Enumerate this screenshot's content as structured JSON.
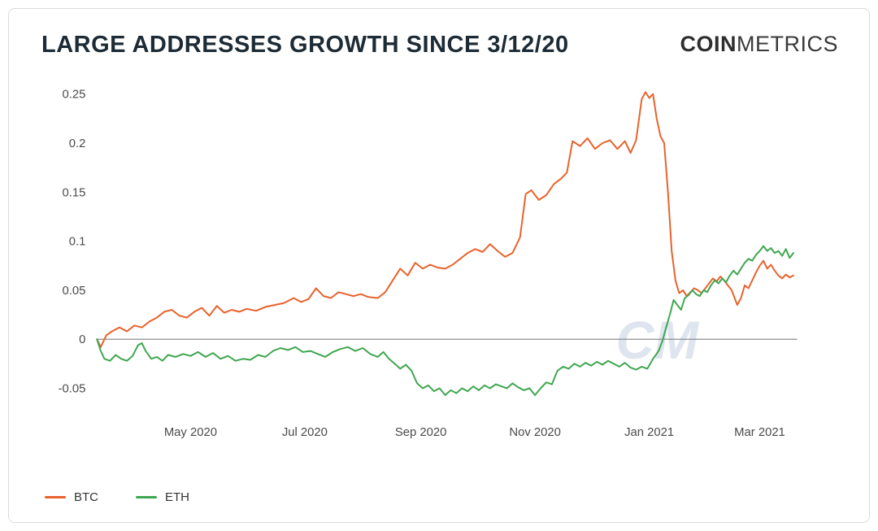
{
  "header": {
    "title": "LARGE ADDRESSES GROWTH SINCE 3/12/20",
    "brand": {
      "coin": "COIN",
      "metrics": "METRICS"
    }
  },
  "legend": {
    "items": [
      {
        "label": "BTC",
        "color": "#E8622C"
      },
      {
        "label": "ETH",
        "color": "#3FA650"
      }
    ]
  },
  "chart_data": {
    "type": "line",
    "title": "LARGE ADDRESSES GROWTH SINCE 3/12/20",
    "xlabel": "",
    "ylabel": "",
    "x_unit": "days since 2020-03-12",
    "xlim": [
      0,
      374
    ],
    "ylim": [
      -0.072,
      0.268
    ],
    "grid": false,
    "legend_position": "bottom-left",
    "zero_line": true,
    "zero_line_color": "#808080",
    "tick_color": "#4a4a4a",
    "watermark": "CM",
    "watermark_color": "#dfe5ee",
    "xticks": [
      {
        "v": 50,
        "label": "May 2020"
      },
      {
        "v": 111,
        "label": "Jul 2020"
      },
      {
        "v": 173,
        "label": "Sep 2020"
      },
      {
        "v": 234,
        "label": "Nov 2020"
      },
      {
        "v": 295,
        "label": "Jan 2021"
      },
      {
        "v": 354,
        "label": "Mar 2021"
      }
    ],
    "yticks": [
      {
        "v": 0.25,
        "label": "0.25"
      },
      {
        "v": 0.2,
        "label": "0.2"
      },
      {
        "v": 0.15,
        "label": "0.15"
      },
      {
        "v": 0.1,
        "label": "0.1"
      },
      {
        "v": 0.05,
        "label": "0.05"
      },
      {
        "v": 0,
        "label": "0"
      },
      {
        "v": -0.05,
        "label": "-0.05"
      }
    ],
    "series": [
      {
        "name": "BTC",
        "color": "#E8622C",
        "points": [
          [
            0,
            0
          ],
          [
            2,
            -0.008
          ],
          [
            5,
            0.004
          ],
          [
            8,
            0.008
          ],
          [
            12,
            0.012
          ],
          [
            16,
            0.008
          ],
          [
            20,
            0.014
          ],
          [
            24,
            0.012
          ],
          [
            28,
            0.018
          ],
          [
            32,
            0.022
          ],
          [
            36,
            0.028
          ],
          [
            40,
            0.03
          ],
          [
            44,
            0.024
          ],
          [
            48,
            0.022
          ],
          [
            52,
            0.028
          ],
          [
            56,
            0.032
          ],
          [
            60,
            0.024
          ],
          [
            64,
            0.034
          ],
          [
            68,
            0.027
          ],
          [
            72,
            0.03
          ],
          [
            76,
            0.028
          ],
          [
            80,
            0.031
          ],
          [
            85,
            0.029
          ],
          [
            90,
            0.033
          ],
          [
            95,
            0.035
          ],
          [
            100,
            0.037
          ],
          [
            105,
            0.042
          ],
          [
            109,
            0.038
          ],
          [
            113,
            0.041
          ],
          [
            117,
            0.052
          ],
          [
            121,
            0.044
          ],
          [
            125,
            0.042
          ],
          [
            129,
            0.048
          ],
          [
            133,
            0.046
          ],
          [
            137,
            0.044
          ],
          [
            141,
            0.046
          ],
          [
            145,
            0.043
          ],
          [
            150,
            0.042
          ],
          [
            154,
            0.048
          ],
          [
            158,
            0.06
          ],
          [
            162,
            0.072
          ],
          [
            166,
            0.065
          ],
          [
            170,
            0.078
          ],
          [
            174,
            0.072
          ],
          [
            178,
            0.076
          ],
          [
            182,
            0.073
          ],
          [
            186,
            0.072
          ],
          [
            190,
            0.076
          ],
          [
            194,
            0.082
          ],
          [
            198,
            0.088
          ],
          [
            202,
            0.092
          ],
          [
            206,
            0.089
          ],
          [
            210,
            0.097
          ],
          [
            214,
            0.09
          ],
          [
            218,
            0.084
          ],
          [
            222,
            0.088
          ],
          [
            226,
            0.104
          ],
          [
            229,
            0.148
          ],
          [
            232,
            0.152
          ],
          [
            236,
            0.142
          ],
          [
            240,
            0.147
          ],
          [
            244,
            0.158
          ],
          [
            248,
            0.164
          ],
          [
            251,
            0.17
          ],
          [
            254,
            0.202
          ],
          [
            258,
            0.197
          ],
          [
            262,
            0.205
          ],
          [
            266,
            0.194
          ],
          [
            270,
            0.2
          ],
          [
            274,
            0.203
          ],
          [
            278,
            0.194
          ],
          [
            282,
            0.202
          ],
          [
            285,
            0.19
          ],
          [
            288,
            0.203
          ],
          [
            291,
            0.245
          ],
          [
            293,
            0.252
          ],
          [
            295,
            0.246
          ],
          [
            297,
            0.25
          ],
          [
            299,
            0.225
          ],
          [
            301,
            0.207
          ],
          [
            303,
            0.2
          ],
          [
            305,
            0.15
          ],
          [
            307,
            0.09
          ],
          [
            309,
            0.06
          ],
          [
            311,
            0.047
          ],
          [
            313,
            0.05
          ],
          [
            315,
            0.044
          ],
          [
            317,
            0.048
          ],
          [
            319,
            0.052
          ],
          [
            321,
            0.05
          ],
          [
            323,
            0.047
          ],
          [
            325,
            0.052
          ],
          [
            327,
            0.057
          ],
          [
            329,
            0.062
          ],
          [
            331,
            0.059
          ],
          [
            333,
            0.064
          ],
          [
            335,
            0.06
          ],
          [
            337,
            0.055
          ],
          [
            339,
            0.05
          ],
          [
            342,
            0.035
          ],
          [
            344,
            0.042
          ],
          [
            346,
            0.055
          ],
          [
            348,
            0.052
          ],
          [
            350,
            0.06
          ],
          [
            352,
            0.068
          ],
          [
            354,
            0.075
          ],
          [
            356,
            0.08
          ],
          [
            358,
            0.072
          ],
          [
            360,
            0.076
          ],
          [
            362,
            0.07
          ],
          [
            364,
            0.065
          ],
          [
            366,
            0.062
          ],
          [
            368,
            0.066
          ],
          [
            370,
            0.063
          ],
          [
            372,
            0.065
          ]
        ]
      },
      {
        "name": "ETH",
        "color": "#3FA650",
        "points": [
          [
            0,
            0
          ],
          [
            2,
            -0.012
          ],
          [
            4,
            -0.02
          ],
          [
            7,
            -0.022
          ],
          [
            10,
            -0.016
          ],
          [
            13,
            -0.02
          ],
          [
            16,
            -0.022
          ],
          [
            19,
            -0.017
          ],
          [
            22,
            -0.006
          ],
          [
            24,
            -0.004
          ],
          [
            26,
            -0.012
          ],
          [
            29,
            -0.02
          ],
          [
            32,
            -0.018
          ],
          [
            35,
            -0.022
          ],
          [
            38,
            -0.016
          ],
          [
            42,
            -0.018
          ],
          [
            46,
            -0.015
          ],
          [
            50,
            -0.017
          ],
          [
            54,
            -0.013
          ],
          [
            58,
            -0.018
          ],
          [
            62,
            -0.014
          ],
          [
            66,
            -0.02
          ],
          [
            70,
            -0.017
          ],
          [
            74,
            -0.022
          ],
          [
            78,
            -0.02
          ],
          [
            82,
            -0.021
          ],
          [
            86,
            -0.016
          ],
          [
            90,
            -0.018
          ],
          [
            94,
            -0.012
          ],
          [
            98,
            -0.009
          ],
          [
            102,
            -0.011
          ],
          [
            106,
            -0.008
          ],
          [
            110,
            -0.013
          ],
          [
            114,
            -0.012
          ],
          [
            118,
            -0.015
          ],
          [
            122,
            -0.018
          ],
          [
            126,
            -0.013
          ],
          [
            130,
            -0.01
          ],
          [
            134,
            -0.008
          ],
          [
            138,
            -0.012
          ],
          [
            142,
            -0.009
          ],
          [
            146,
            -0.015
          ],
          [
            150,
            -0.018
          ],
          [
            153,
            -0.013
          ],
          [
            156,
            -0.02
          ],
          [
            159,
            -0.025
          ],
          [
            162,
            -0.03
          ],
          [
            165,
            -0.026
          ],
          [
            168,
            -0.032
          ],
          [
            171,
            -0.045
          ],
          [
            174,
            -0.05
          ],
          [
            177,
            -0.047
          ],
          [
            180,
            -0.053
          ],
          [
            183,
            -0.05
          ],
          [
            186,
            -0.057
          ],
          [
            189,
            -0.052
          ],
          [
            192,
            -0.055
          ],
          [
            195,
            -0.05
          ],
          [
            198,
            -0.053
          ],
          [
            201,
            -0.048
          ],
          [
            204,
            -0.052
          ],
          [
            207,
            -0.047
          ],
          [
            210,
            -0.05
          ],
          [
            213,
            -0.046
          ],
          [
            216,
            -0.048
          ],
          [
            219,
            -0.05
          ],
          [
            222,
            -0.045
          ],
          [
            225,
            -0.049
          ],
          [
            228,
            -0.052
          ],
          [
            231,
            -0.05
          ],
          [
            234,
            -0.057
          ],
          [
            237,
            -0.05
          ],
          [
            240,
            -0.044
          ],
          [
            243,
            -0.046
          ],
          [
            246,
            -0.032
          ],
          [
            249,
            -0.028
          ],
          [
            252,
            -0.03
          ],
          [
            255,
            -0.025
          ],
          [
            258,
            -0.028
          ],
          [
            261,
            -0.024
          ],
          [
            264,
            -0.027
          ],
          [
            267,
            -0.023
          ],
          [
            270,
            -0.026
          ],
          [
            273,
            -0.022
          ],
          [
            276,
            -0.025
          ],
          [
            279,
            -0.028
          ],
          [
            282,
            -0.024
          ],
          [
            285,
            -0.029
          ],
          [
            288,
            -0.031
          ],
          [
            291,
            -0.028
          ],
          [
            294,
            -0.03
          ],
          [
            297,
            -0.02
          ],
          [
            300,
            -0.012
          ],
          [
            302,
            -0.002
          ],
          [
            304,
            0.012
          ],
          [
            306,
            0.025
          ],
          [
            308,
            0.04
          ],
          [
            310,
            0.035
          ],
          [
            312,
            0.03
          ],
          [
            314,
            0.042
          ],
          [
            316,
            0.045
          ],
          [
            318,
            0.05
          ],
          [
            320,
            0.046
          ],
          [
            322,
            0.044
          ],
          [
            324,
            0.05
          ],
          [
            326,
            0.048
          ],
          [
            328,
            0.055
          ],
          [
            330,
            0.06
          ],
          [
            332,
            0.057
          ],
          [
            334,
            0.062
          ],
          [
            336,
            0.058
          ],
          [
            338,
            0.065
          ],
          [
            340,
            0.07
          ],
          [
            342,
            0.066
          ],
          [
            344,
            0.072
          ],
          [
            346,
            0.078
          ],
          [
            348,
            0.082
          ],
          [
            350,
            0.08
          ],
          [
            352,
            0.086
          ],
          [
            354,
            0.09
          ],
          [
            356,
            0.095
          ],
          [
            358,
            0.09
          ],
          [
            360,
            0.093
          ],
          [
            362,
            0.088
          ],
          [
            364,
            0.09
          ],
          [
            366,
            0.085
          ],
          [
            368,
            0.092
          ],
          [
            370,
            0.083
          ],
          [
            372,
            0.088
          ]
        ]
      }
    ]
  }
}
